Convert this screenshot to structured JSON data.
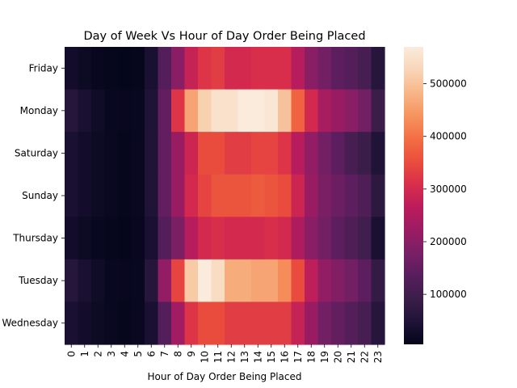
{
  "chart_data": {
    "type": "heatmap",
    "title": "Day of Week Vs Hour of Day Order Being Placed",
    "xlabel": "Hour of Day Order Being Placed",
    "ylabel": "",
    "rows": [
      "Friday",
      "Monday",
      "Saturday",
      "Sunday",
      "Thursday",
      "Tuesday",
      "Wednesday"
    ],
    "columns": [
      "0",
      "1",
      "2",
      "3",
      "4",
      "5",
      "6",
      "7",
      "8",
      "9",
      "10",
      "11",
      "12",
      "13",
      "14",
      "15",
      "16",
      "17",
      "18",
      "19",
      "20",
      "21",
      "22",
      "23"
    ],
    "values": [
      [
        30000,
        20000,
        12000,
        9000,
        7000,
        9000,
        40000,
        130000,
        200000,
        280000,
        320000,
        330000,
        300000,
        300000,
        310000,
        310000,
        310000,
        260000,
        200000,
        170000,
        140000,
        130000,
        110000,
        60000
      ],
      [
        60000,
        40000,
        25000,
        15000,
        12000,
        15000,
        50000,
        150000,
        320000,
        460000,
        520000,
        550000,
        550000,
        570000,
        570000,
        560000,
        500000,
        380000,
        300000,
        240000,
        220000,
        200000,
        170000,
        90000
      ],
      [
        40000,
        30000,
        20000,
        14000,
        10000,
        14000,
        50000,
        150000,
        220000,
        290000,
        350000,
        350000,
        330000,
        330000,
        340000,
        340000,
        320000,
        260000,
        210000,
        170000,
        140000,
        110000,
        90000,
        50000
      ],
      [
        40000,
        30000,
        20000,
        14000,
        10000,
        14000,
        50000,
        150000,
        220000,
        300000,
        340000,
        360000,
        360000,
        360000,
        370000,
        360000,
        350000,
        290000,
        220000,
        180000,
        160000,
        140000,
        120000,
        70000
      ],
      [
        30000,
        20000,
        15000,
        10000,
        8000,
        12000,
        40000,
        130000,
        180000,
        260000,
        300000,
        310000,
        300000,
        300000,
        300000,
        310000,
        300000,
        250000,
        200000,
        170000,
        140000,
        120000,
        100000,
        40000
      ],
      [
        60000,
        40000,
        25000,
        15000,
        12000,
        15000,
        60000,
        210000,
        340000,
        510000,
        570000,
        540000,
        470000,
        470000,
        460000,
        460000,
        430000,
        350000,
        270000,
        210000,
        190000,
        170000,
        140000,
        80000
      ],
      [
        40000,
        30000,
        20000,
        14000,
        10000,
        14000,
        40000,
        130000,
        230000,
        320000,
        350000,
        350000,
        330000,
        330000,
        330000,
        330000,
        330000,
        280000,
        220000,
        170000,
        150000,
        130000,
        110000,
        60000
      ]
    ],
    "colorbar": {
      "min": 5000,
      "max": 570000,
      "ticks": [
        100000,
        200000,
        300000,
        400000,
        500000
      ],
      "tick_labels": [
        "100000",
        "200000",
        "300000",
        "400000",
        "500000"
      ]
    },
    "colormap": "rocket",
    "colors": {
      "stops": [
        "#03051a",
        "#1f1337",
        "#3b1e4a",
        "#581e5d",
        "#7a1f65",
        "#9b1c63",
        "#bb1c5b",
        "#d92d4b",
        "#ea4e3c",
        "#f26f44",
        "#f6945f",
        "#f7b689",
        "#f8d6b8",
        "#faebdd"
      ]
    }
  }
}
